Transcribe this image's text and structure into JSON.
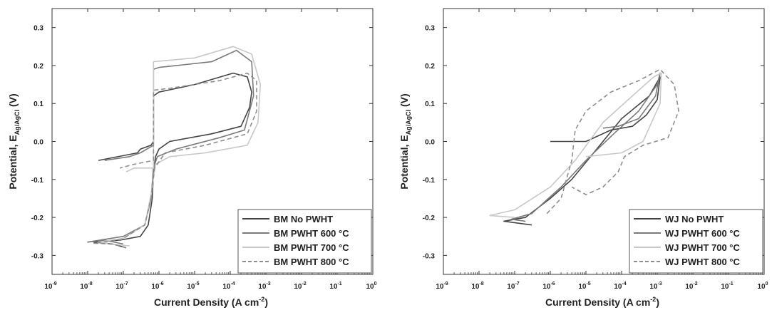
{
  "chart_data": [
    {
      "type": "line",
      "xlabel": "Current Density (A cm",
      "xlabel_sup": "-2",
      "xlabel_end": ")",
      "ylabel": "Potential, E",
      "ylabel_sub": "Ag/AgCl",
      "ylabel_end": " (V)",
      "xscale": "log",
      "xlim": [
        1e-09,
        1.0
      ],
      "ylim": [
        -0.35,
        0.35
      ],
      "xtick_base": "10",
      "xtick_exponents": [
        "-9",
        "-8",
        "-7",
        "-6",
        "-5",
        "-4",
        "-3",
        "-2",
        "-1",
        "0"
      ],
      "yticks": [
        "-0.3",
        "-0.2",
        "-0.1",
        "0.0",
        "0.1",
        "0.2",
        "0.3"
      ],
      "legend_position": "bottom-right",
      "series": [
        {
          "name": "BM No PWHT",
          "color": "#444444",
          "dash": "solid",
          "points": [
            [
              1.2e-07,
              -0.28
            ],
            [
              5e-08,
              -0.27
            ],
            [
              1.5e-08,
              -0.265
            ],
            [
              8e-08,
              -0.26
            ],
            [
              3e-07,
              -0.25
            ],
            [
              5e-07,
              -0.22
            ],
            [
              6.5e-07,
              -0.15
            ],
            [
              7e-07,
              -0.08
            ],
            [
              8e-07,
              -0.04
            ],
            [
              1e-06,
              -0.02
            ],
            [
              2e-06,
              0.0
            ],
            [
              3e-05,
              0.02
            ],
            [
              0.0002,
              0.04
            ],
            [
              0.00035,
              0.09
            ],
            [
              0.0004,
              0.13
            ],
            [
              0.0003,
              0.17
            ],
            [
              0.00012,
              0.18
            ],
            [
              1e-05,
              0.15
            ],
            [
              1e-06,
              0.13
            ],
            [
              7e-07,
              0.12
            ],
            [
              7e-07,
              0.0
            ],
            [
              6e-07,
              -0.01
            ],
            [
              3e-07,
              -0.02
            ],
            [
              2.5e-07,
              -0.03
            ],
            [
              2e-08,
              -0.05
            ]
          ]
        },
        {
          "name": "BM PWHT 600 °C",
          "color": "#7a7a7a",
          "dash": "solid",
          "points": [
            [
              1e-07,
              -0.27
            ],
            [
              3e-08,
              -0.26
            ],
            [
              1e-08,
              -0.265
            ],
            [
              1e-07,
              -0.25
            ],
            [
              4e-07,
              -0.22
            ],
            [
              6e-07,
              -0.15
            ],
            [
              7e-07,
              -0.07
            ],
            [
              9e-07,
              -0.04
            ],
            [
              3e-06,
              -0.02
            ],
            [
              5e-05,
              0.01
            ],
            [
              0.00025,
              0.03
            ],
            [
              0.00045,
              0.12
            ],
            [
              0.0004,
              0.21
            ],
            [
              0.00015,
              0.24
            ],
            [
              3e-05,
              0.21
            ],
            [
              1e-06,
              0.195
            ],
            [
              7e-07,
              0.19
            ],
            [
              7e-07,
              -0.01
            ],
            [
              3e-07,
              -0.03
            ],
            [
              1.5e-07,
              -0.04
            ],
            [
              3e-08,
              -0.05
            ]
          ]
        },
        {
          "name": "BM PWHT 700 °C",
          "color": "#c8c8c8",
          "dash": "solid",
          "points": [
            [
              1.5e-07,
              -0.275
            ],
            [
              4e-08,
              -0.27
            ],
            [
              2e-08,
              -0.265
            ],
            [
              1e-07,
              -0.255
            ],
            [
              4e-07,
              -0.22
            ],
            [
              6e-07,
              -0.14
            ],
            [
              8e-07,
              -0.06
            ],
            [
              2e-06,
              -0.04
            ],
            [
              2e-05,
              -0.03
            ],
            [
              0.0003,
              -0.01
            ],
            [
              0.0006,
              0.05
            ],
            [
              0.0007,
              0.15
            ],
            [
              0.0004,
              0.23
            ],
            [
              0.00012,
              0.25
            ],
            [
              1e-05,
              0.22
            ],
            [
              7e-07,
              0.21
            ],
            [
              7e-07,
              -0.07
            ],
            [
              2e-07,
              -0.07
            ],
            [
              1.2e-07,
              -0.08
            ]
          ]
        },
        {
          "name": "BM PWHT 800 °C",
          "color": "#8e8e8e",
          "dash": "dashed",
          "points": [
            [
              1.2e-07,
              -0.28
            ],
            [
              5e-08,
              -0.27
            ],
            [
              1.5e-08,
              -0.268
            ],
            [
              9e-08,
              -0.258
            ],
            [
              4e-07,
              -0.22
            ],
            [
              6e-07,
              -0.15
            ],
            [
              7.5e-07,
              -0.07
            ],
            [
              1.5e-06,
              -0.03
            ],
            [
              2e-05,
              -0.01
            ],
            [
              0.0003,
              0.02
            ],
            [
              0.00055,
              0.08
            ],
            [
              0.00055,
              0.16
            ],
            [
              0.0003,
              0.18
            ],
            [
              5e-05,
              0.16
            ],
            [
              2e-06,
              0.14
            ],
            [
              7e-07,
              0.135
            ],
            [
              7e-07,
              -0.05
            ],
            [
              2e-07,
              -0.06
            ],
            [
              8e-08,
              -0.07
            ]
          ]
        }
      ]
    },
    {
      "type": "line",
      "xlabel": "Current Density (A cm",
      "xlabel_sup": "-2",
      "xlabel_end": ")",
      "ylabel": "Potential, E",
      "ylabel_sub": "Ag/AgCl",
      "ylabel_end": " (V)",
      "xscale": "log",
      "xlim": [
        1e-09,
        1.0
      ],
      "ylim": [
        -0.35,
        0.35
      ],
      "xtick_base": "10",
      "xtick_exponents": [
        "-9",
        "-8",
        "-7",
        "-6",
        "-5",
        "-4",
        "-3",
        "-2",
        "-1",
        "0"
      ],
      "yticks": [
        "-0.3",
        "-0.2",
        "-0.1",
        "0.0",
        "0.1",
        "0.2",
        "0.3"
      ],
      "legend_position": "bottom-right",
      "series": [
        {
          "name": "WJ No PWHT",
          "color": "#444444",
          "dash": "solid",
          "points": [
            [
              3e-07,
              -0.22
            ],
            [
              5e-08,
              -0.21
            ],
            [
              2e-07,
              -0.2
            ],
            [
              1e-06,
              -0.15
            ],
            [
              4e-06,
              -0.1
            ],
            [
              2e-05,
              -0.02
            ],
            [
              0.0001,
              0.06
            ],
            [
              0.0006,
              0.12
            ],
            [
              0.0012,
              0.17
            ],
            [
              0.001,
              0.11
            ],
            [
              0.0005,
              0.07
            ],
            [
              0.0002,
              0.04
            ],
            [
              5e-05,
              0.03
            ],
            [
              1e-05,
              0.0
            ],
            [
              1e-06,
              0.0
            ]
          ]
        },
        {
          "name": "WJ PWHT 600 °C",
          "color": "#7a7a7a",
          "dash": "solid",
          "points": [
            [
              2e-07,
              -0.21
            ],
            [
              8e-08,
              -0.205
            ],
            [
              3e-07,
              -0.19
            ],
            [
              2e-06,
              -0.12
            ],
            [
              1e-05,
              -0.05
            ],
            [
              6e-05,
              0.02
            ],
            [
              0.0003,
              0.08
            ],
            [
              0.001,
              0.15
            ],
            [
              0.0012,
              0.18
            ],
            [
              0.0009,
              0.12
            ],
            [
              0.0003,
              0.06
            ],
            [
              8e-05,
              0.04
            ],
            [
              3e-05,
              0.035
            ]
          ]
        },
        {
          "name": "WJ PWHT 700 °C",
          "color": "#c8c8c8",
          "dash": "solid",
          "points": [
            [
              1e-07,
              -0.2
            ],
            [
              2e-08,
              -0.195
            ],
            [
              1e-07,
              -0.18
            ],
            [
              1e-06,
              -0.12
            ],
            [
              5e-06,
              -0.05
            ],
            [
              3e-05,
              0.05
            ],
            [
              0.0002,
              0.12
            ],
            [
              0.0008,
              0.17
            ],
            [
              0.0013,
              0.18
            ],
            [
              0.0012,
              0.1
            ],
            [
              0.0004,
              0.0
            ],
            [
              0.0001,
              -0.03
            ],
            [
              1e-05,
              -0.04
            ]
          ]
        },
        {
          "name": "WJ PWHT 800 °C",
          "color": "#8e8e8e",
          "dash": "dashed",
          "points": [
            [
              8e-07,
              -0.19
            ],
            [
              2e-06,
              -0.15
            ],
            [
              4e-06,
              -0.05
            ],
            [
              5e-06,
              0.03
            ],
            [
              1e-05,
              0.08
            ],
            [
              5e-05,
              0.13
            ],
            [
              0.0003,
              0.16
            ],
            [
              0.0012,
              0.19
            ],
            [
              0.003,
              0.15
            ],
            [
              0.004,
              0.08
            ],
            [
              0.002,
              0.01
            ],
            [
              0.0004,
              -0.01
            ],
            [
              0.00012,
              -0.04
            ],
            [
              8e-05,
              -0.08
            ],
            [
              3e-05,
              -0.12
            ],
            [
              1e-05,
              -0.14
            ],
            [
              4e-06,
              -0.12
            ]
          ]
        }
      ]
    }
  ]
}
